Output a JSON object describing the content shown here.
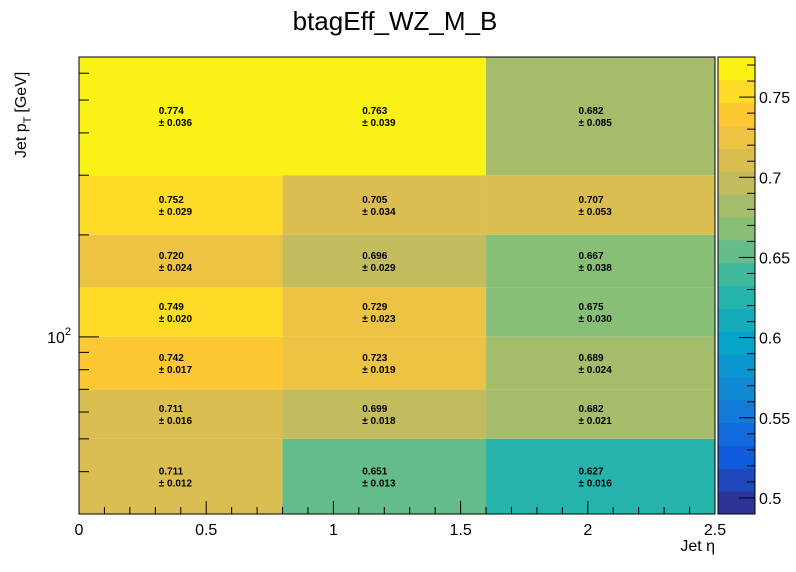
{
  "chart_data": {
    "type": "heatmap",
    "title": "btagEff_WZ_M_B",
    "xlabel": "Jet η",
    "ylabel_main": "Jet p",
    "ylabel_sub": "T",
    "ylabel_unit": "[GeV]",
    "x_edges": [
      0,
      0.8,
      1.6,
      2.5
    ],
    "x_ticks": [
      {
        "value": 0,
        "label": "0"
      },
      {
        "value": 0.5,
        "label": "0.5"
      },
      {
        "value": 1,
        "label": "1"
      },
      {
        "value": 1.5,
        "label": "1.5"
      },
      {
        "value": 2,
        "label": "2"
      },
      {
        "value": 2.5,
        "label": "2.5"
      }
    ],
    "y_log": true,
    "y_edges": [
      30,
      50,
      70,
      100,
      140,
      200,
      300,
      670
    ],
    "y_ticks": [
      {
        "value": 100,
        "base": "10",
        "exp": "2"
      }
    ],
    "values": [
      [
        0.711,
        0.651,
        0.627
      ],
      [
        0.711,
        0.699,
        0.682
      ],
      [
        0.742,
        0.723,
        0.689
      ],
      [
        0.749,
        0.729,
        0.675
      ],
      [
        0.72,
        0.696,
        0.667
      ],
      [
        0.752,
        0.705,
        0.707
      ],
      [
        0.774,
        0.763,
        0.682
      ]
    ],
    "value_labels": [
      [
        "0.711",
        "0.651",
        "0.627"
      ],
      [
        "0.711",
        "0.699",
        "0.682"
      ],
      [
        "0.742",
        "0.723",
        "0.689"
      ],
      [
        "0.749",
        "0.729",
        "0.675"
      ],
      [
        "0.720",
        "0.696",
        "0.667"
      ],
      [
        "0.752",
        "0.705",
        "0.707"
      ],
      [
        "0.774",
        "0.763",
        "0.682"
      ]
    ],
    "error_labels": [
      [
        "± 0.012",
        "± 0.013",
        "± 0.016"
      ],
      [
        "± 0.016",
        "± 0.018",
        "± 0.021"
      ],
      [
        "± 0.017",
        "± 0.019",
        "± 0.024"
      ],
      [
        "± 0.020",
        "± 0.023",
        "± 0.030"
      ],
      [
        "± 0.024",
        "± 0.029",
        "± 0.038"
      ],
      [
        "± 0.029",
        "± 0.034",
        "± 0.053"
      ],
      [
        "± 0.036",
        "± 0.039",
        "± 0.085"
      ]
    ],
    "z_range": [
      0.49,
      0.775
    ],
    "colorbar_ticks": [
      {
        "value": 0.5,
        "label": "0.5"
      },
      {
        "value": 0.55,
        "label": "0.55"
      },
      {
        "value": 0.6,
        "label": "0.6"
      },
      {
        "value": 0.65,
        "label": "0.65"
      },
      {
        "value": 0.7,
        "label": "0.7"
      },
      {
        "value": 0.75,
        "label": "0.75"
      }
    ],
    "colormap": "kBird",
    "colormap_stops": [
      "#352a87",
      "#0f5cdd",
      "#1481d6",
      "#06a4ca",
      "#2eb7a4",
      "#87bf77",
      "#d1bb59",
      "#fec832",
      "#f9fb0e"
    ]
  }
}
